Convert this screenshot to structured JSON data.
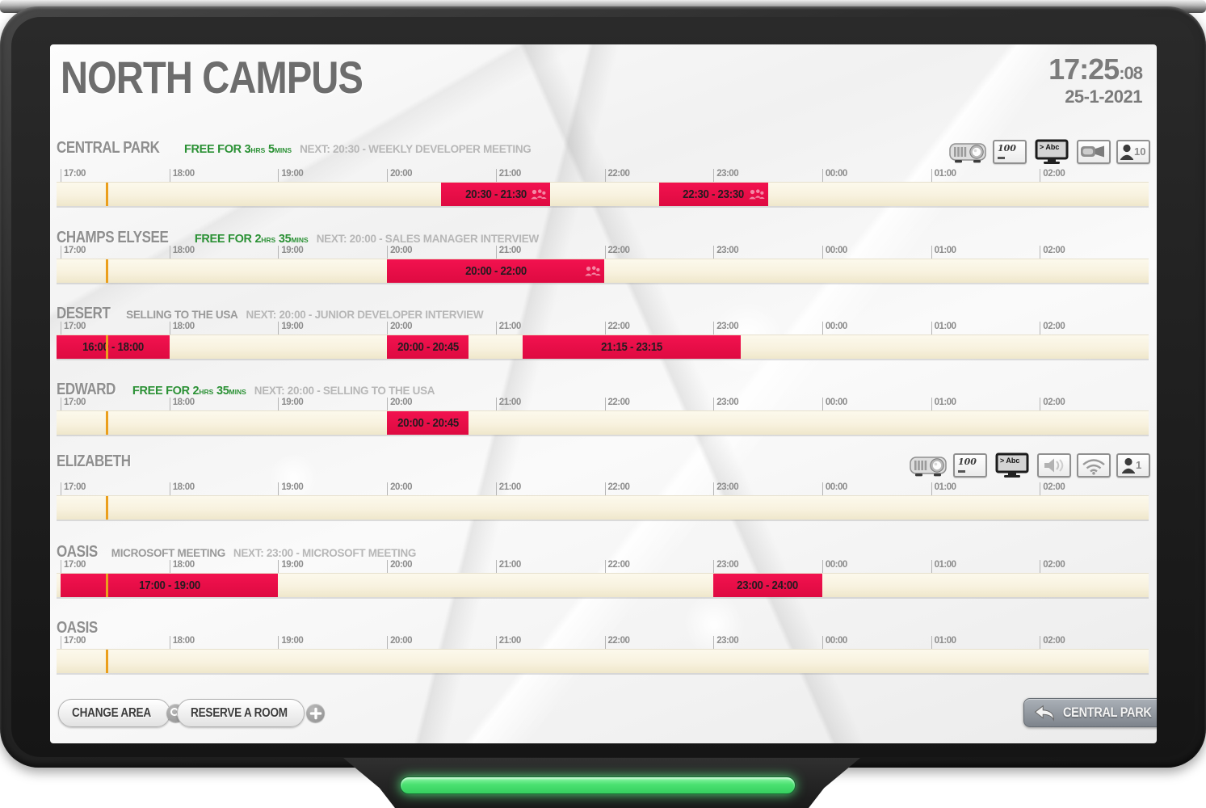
{
  "header": {
    "title": "NORTH CAMPUS",
    "time": "17:25",
    "seconds": ":08",
    "date": "25-1-2021"
  },
  "now": "17:25",
  "timeline": {
    "hours": [
      "17:00",
      "18:00",
      "19:00",
      "20:00",
      "21:00",
      "22:00",
      "23:00",
      "00:00",
      "01:00",
      "02:00"
    ],
    "start_hour": "17:00"
  },
  "rooms": [
    {
      "name": "CENTRAL PARK",
      "free": {
        "text": "FREE FOR",
        "hours": "3",
        "hours_unit": "HRS",
        "mins": "5",
        "mins_unit": "MINS"
      },
      "next": "NEXT: 20:30 - WEEKLY DEVELOPER MEETING",
      "equipment": [
        {
          "type": "projector"
        },
        {
          "type": "whiteboard",
          "label": "100"
        },
        {
          "type": "tv",
          "label": "> Abc"
        },
        {
          "type": "video-camera"
        },
        {
          "type": "capacity",
          "label": "10"
        }
      ],
      "bookings": [
        {
          "label": "20:30 - 21:30",
          "start": "20:30",
          "end": "21:30",
          "attendees": true
        },
        {
          "label": "22:30 - 23:30",
          "start": "22:30",
          "end": "23:30",
          "attendees": true
        }
      ]
    },
    {
      "name": "CHAMPS ELYSEE",
      "free": {
        "text": "FREE FOR",
        "hours": "2",
        "hours_unit": "HRS",
        "mins": "35",
        "mins_unit": "MINS"
      },
      "next": "NEXT: 20:00 - SALES MANAGER INTERVIEW",
      "equipment": [],
      "bookings": [
        {
          "label": "20:00 - 22:00",
          "start": "20:00",
          "end": "22:00",
          "attendees": true
        }
      ]
    },
    {
      "name": "DESERT",
      "current": "SELLING TO THE USA",
      "next": "NEXT: 20:00 - JUNIOR DEVELOPER INTERVIEW",
      "equipment": [],
      "bookings": [
        {
          "label": "16:00 - 18:00",
          "start": "16:00",
          "end": "18:00",
          "attendees": false
        },
        {
          "label": "20:00 - 20:45",
          "start": "20:00",
          "end": "20:45",
          "attendees": false
        },
        {
          "label": "21:15 - 23:15",
          "start": "21:15",
          "end": "23:15",
          "attendees": false
        }
      ]
    },
    {
      "name": "EDWARD",
      "free": {
        "text": "FREE FOR",
        "hours": "2",
        "hours_unit": "HRS",
        "mins": "35",
        "mins_unit": "MINS"
      },
      "next": "NEXT: 20:00 - SELLING TO THE USA",
      "equipment": [],
      "bookings": [
        {
          "label": "20:00 - 20:45",
          "start": "20:00",
          "end": "20:45",
          "attendees": false
        }
      ]
    },
    {
      "name": "ELIZABETH",
      "equipment": [
        {
          "type": "projector"
        },
        {
          "type": "whiteboard",
          "label": "100"
        },
        {
          "type": "tv",
          "label": "> Abc"
        },
        {
          "type": "speaker"
        },
        {
          "type": "wifi"
        },
        {
          "type": "capacity",
          "label": "1"
        }
      ],
      "bookings": []
    },
    {
      "name": "OASIS",
      "current": "MICROSOFT MEETING",
      "next": "NEXT: 23:00 - MICROSOFT MEETING",
      "equipment": [],
      "bookings": [
        {
          "label": "17:00 - 19:00",
          "start": "17:00",
          "end": "19:00",
          "attendees": false
        },
        {
          "label": "23:00 - 24:00",
          "start": "23:00",
          "end": "24:00",
          "attendees": false
        }
      ]
    },
    {
      "name": "OASIS",
      "equipment": [],
      "bookings": []
    }
  ],
  "footer": {
    "change_area": "CHANGE AREA",
    "reserve_room": "RESERVE A ROOM",
    "active_room": "CENTRAL PARK"
  },
  "colors": {
    "booking_red": "#e60d45",
    "free_green": "#2b9135",
    "now_marker_orange": "#eb9f1c",
    "led_green": "#4ae171"
  }
}
